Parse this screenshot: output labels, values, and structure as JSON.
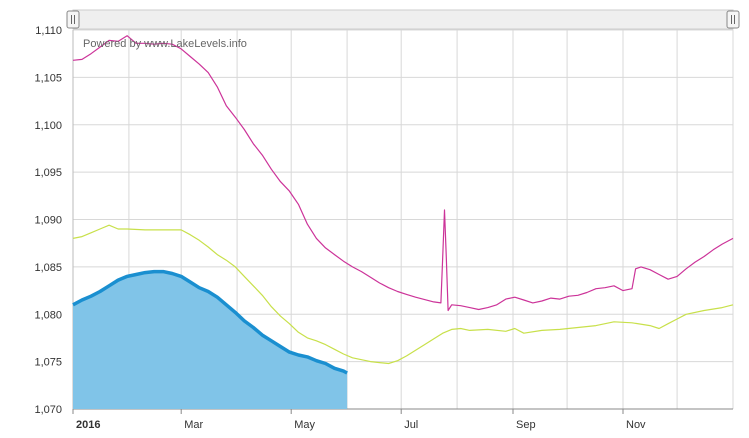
{
  "chart_data": {
    "type": "area",
    "watermark": "Powered by www.LakeLevels.info",
    "x_ticks": [
      {
        "label": "2016",
        "day": 0,
        "bold": true
      },
      {
        "label": "Mar",
        "day": 60
      },
      {
        "label": "May",
        "day": 121
      },
      {
        "label": "Jul",
        "day": 182
      },
      {
        "label": "Sep",
        "day": 244
      },
      {
        "label": "Nov",
        "day": 305
      }
    ],
    "y_ticks": [
      "1,070",
      "1,075",
      "1,080",
      "1,085",
      "1,090",
      "1,095",
      "1,100",
      "1,105",
      "1,110"
    ],
    "ylim": [
      1070,
      1110
    ],
    "xlim_days": [
      0,
      366
    ],
    "grid": true,
    "colors": {
      "current_fill": "#80c4e8",
      "current_line": "#1a8fd0",
      "magenta": "#cc3399",
      "yellow": "#c8e04a",
      "grid": "#d8d8d8",
      "navigator_bg": "#efefef"
    },
    "series": [
      {
        "color": "#cc3399",
        "points": [
          [
            0,
            1106.8
          ],
          [
            5,
            1106.9
          ],
          [
            10,
            1107.5
          ],
          [
            15,
            1108.2
          ],
          [
            20,
            1108.9
          ],
          [
            25,
            1108.8
          ],
          [
            30,
            1109.4
          ],
          [
            35,
            1108.6
          ],
          [
            40,
            1108.6
          ],
          [
            45,
            1108.5
          ],
          [
            50,
            1108.6
          ],
          [
            55,
            1108.5
          ],
          [
            60,
            1108.0
          ],
          [
            65,
            1107.2
          ],
          [
            70,
            1106.4
          ],
          [
            75,
            1105.5
          ],
          [
            80,
            1104.0
          ],
          [
            85,
            1102.0
          ],
          [
            90,
            1100.8
          ],
          [
            95,
            1099.5
          ],
          [
            100,
            1098.0
          ],
          [
            105,
            1096.8
          ],
          [
            110,
            1095.3
          ],
          [
            115,
            1094.0
          ],
          [
            120,
            1093.0
          ],
          [
            125,
            1091.6
          ],
          [
            130,
            1089.5
          ],
          [
            135,
            1088.0
          ],
          [
            140,
            1087.0
          ],
          [
            145,
            1086.3
          ],
          [
            150,
            1085.6
          ],
          [
            155,
            1085.0
          ],
          [
            160,
            1084.5
          ],
          [
            165,
            1083.9
          ],
          [
            170,
            1083.3
          ],
          [
            175,
            1082.8
          ],
          [
            180,
            1082.4
          ],
          [
            185,
            1082.1
          ],
          [
            190,
            1081.8
          ],
          [
            200,
            1081.3
          ],
          [
            204,
            1081.2
          ],
          [
            205,
            1086.0
          ],
          [
            206,
            1091.0
          ],
          [
            207,
            1086.0
          ],
          [
            208,
            1080.4
          ],
          [
            210,
            1081.0
          ],
          [
            215,
            1080.9
          ],
          [
            220,
            1080.7
          ],
          [
            225,
            1080.5
          ],
          [
            230,
            1080.7
          ],
          [
            235,
            1081.0
          ],
          [
            240,
            1081.6
          ],
          [
            245,
            1081.8
          ],
          [
            250,
            1081.5
          ],
          [
            255,
            1081.2
          ],
          [
            260,
            1081.4
          ],
          [
            265,
            1081.7
          ],
          [
            270,
            1081.6
          ],
          [
            275,
            1081.9
          ],
          [
            280,
            1082.0
          ],
          [
            285,
            1082.3
          ],
          [
            290,
            1082.7
          ],
          [
            295,
            1082.8
          ],
          [
            300,
            1083.0
          ],
          [
            305,
            1082.5
          ],
          [
            310,
            1082.7
          ],
          [
            312,
            1084.8
          ],
          [
            315,
            1085.0
          ],
          [
            320,
            1084.7
          ],
          [
            325,
            1084.2
          ],
          [
            330,
            1083.7
          ],
          [
            335,
            1084.0
          ],
          [
            340,
            1084.8
          ],
          [
            345,
            1085.5
          ],
          [
            350,
            1086.1
          ],
          [
            355,
            1086.8
          ],
          [
            360,
            1087.4
          ],
          [
            366,
            1088.0
          ]
        ]
      },
      {
        "color": "#c8e04a",
        "points": [
          [
            0,
            1088.0
          ],
          [
            5,
            1088.2
          ],
          [
            10,
            1088.6
          ],
          [
            15,
            1089.0
          ],
          [
            20,
            1089.4
          ],
          [
            25,
            1089.0
          ],
          [
            30,
            1089.0
          ],
          [
            40,
            1088.9
          ],
          [
            50,
            1088.9
          ],
          [
            60,
            1088.9
          ],
          [
            65,
            1088.4
          ],
          [
            70,
            1087.8
          ],
          [
            75,
            1087.1
          ],
          [
            80,
            1086.3
          ],
          [
            85,
            1085.7
          ],
          [
            90,
            1085.0
          ],
          [
            95,
            1084.0
          ],
          [
            100,
            1083.0
          ],
          [
            105,
            1082.0
          ],
          [
            110,
            1080.8
          ],
          [
            115,
            1079.8
          ],
          [
            120,
            1079.0
          ],
          [
            125,
            1078.1
          ],
          [
            130,
            1077.5
          ],
          [
            135,
            1077.2
          ],
          [
            140,
            1076.8
          ],
          [
            145,
            1076.3
          ],
          [
            150,
            1075.8
          ],
          [
            155,
            1075.4
          ],
          [
            160,
            1075.2
          ],
          [
            165,
            1075.0
          ],
          [
            170,
            1074.9
          ],
          [
            175,
            1074.8
          ],
          [
            180,
            1075.1
          ],
          [
            185,
            1075.6
          ],
          [
            190,
            1076.2
          ],
          [
            195,
            1076.8
          ],
          [
            200,
            1077.4
          ],
          [
            205,
            1078.0
          ],
          [
            210,
            1078.4
          ],
          [
            215,
            1078.5
          ],
          [
            220,
            1078.3
          ],
          [
            230,
            1078.4
          ],
          [
            240,
            1078.2
          ],
          [
            245,
            1078.5
          ],
          [
            250,
            1078.0
          ],
          [
            260,
            1078.3
          ],
          [
            270,
            1078.4
          ],
          [
            280,
            1078.6
          ],
          [
            290,
            1078.8
          ],
          [
            300,
            1079.2
          ],
          [
            310,
            1079.1
          ],
          [
            320,
            1078.8
          ],
          [
            325,
            1078.5
          ],
          [
            330,
            1079.0
          ],
          [
            335,
            1079.5
          ],
          [
            340,
            1080.0
          ],
          [
            350,
            1080.4
          ],
          [
            360,
            1080.7
          ],
          [
            366,
            1081.0
          ]
        ]
      },
      {
        "color": "#1a8fd0",
        "points": [
          [
            0,
            1081.0
          ],
          [
            5,
            1081.5
          ],
          [
            10,
            1081.9
          ],
          [
            15,
            1082.4
          ],
          [
            20,
            1083.0
          ],
          [
            25,
            1083.6
          ],
          [
            30,
            1084.0
          ],
          [
            35,
            1084.2
          ],
          [
            40,
            1084.4
          ],
          [
            45,
            1084.5
          ],
          [
            50,
            1084.5
          ],
          [
            55,
            1084.3
          ],
          [
            60,
            1084.0
          ],
          [
            65,
            1083.4
          ],
          [
            70,
            1082.8
          ],
          [
            75,
            1082.4
          ],
          [
            80,
            1081.8
          ],
          [
            85,
            1081.0
          ],
          [
            90,
            1080.2
          ],
          [
            95,
            1079.3
          ],
          [
            100,
            1078.6
          ],
          [
            105,
            1077.8
          ],
          [
            110,
            1077.2
          ],
          [
            115,
            1076.6
          ],
          [
            120,
            1076.0
          ],
          [
            125,
            1075.7
          ],
          [
            130,
            1075.5
          ],
          [
            135,
            1075.1
          ],
          [
            140,
            1074.8
          ],
          [
            145,
            1074.3
          ],
          [
            150,
            1074.0
          ],
          [
            152,
            1073.8
          ]
        ]
      }
    ]
  }
}
